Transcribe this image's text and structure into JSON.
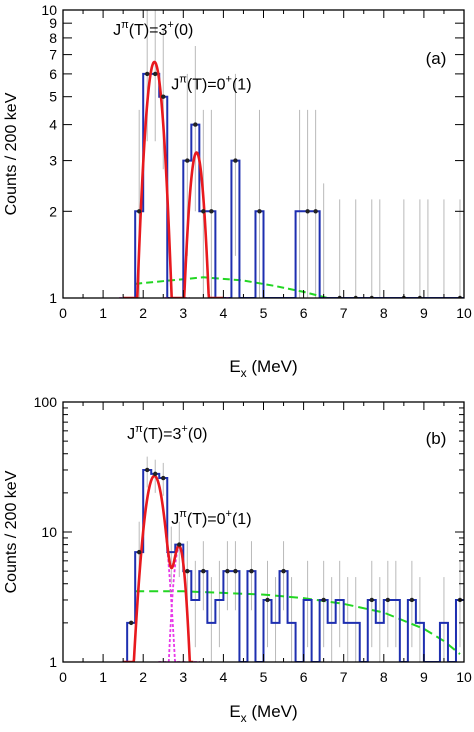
{
  "chart_data": [
    {
      "panel": "(a)",
      "type": "histogram",
      "xlabel": "E",
      "xlabel_sub": "x",
      "xlabel_unit": " (MeV)",
      "ylabel": "Counts / 200 keV",
      "xlim": [
        0,
        10
      ],
      "ylim": [
        1,
        10
      ],
      "yscale": "log",
      "x_ticks": [
        0,
        1,
        2,
        3,
        4,
        5,
        6,
        7,
        8,
        9,
        10
      ],
      "x_tick_labels": [
        "0",
        "1",
        "2",
        "3",
        "4",
        "5",
        "6",
        "7",
        "8",
        "9",
        "10"
      ],
      "y_ticks": [
        1,
        2,
        3,
        4,
        5,
        6,
        7,
        8,
        9,
        10
      ],
      "y_tick_labels": [
        "1",
        "2",
        "3",
        "4",
        "5",
        "6",
        "7",
        "8",
        "9",
        "10"
      ],
      "annotations": [
        {
          "base": "J",
          "sup1": "π",
          "mid": "(T)=3",
          "sup2": "+",
          "end": "(0)",
          "x": 1.25,
          "y": 8.2
        },
        {
          "base": "J",
          "sup1": "π",
          "mid": "(T)=0",
          "sup2": "+",
          "end": "(1)",
          "x": 2.7,
          "y": 5.3
        }
      ],
      "panel_label": "(a)",
      "bin_width": 0.2,
      "histogram": [
        {
          "x": 1.9,
          "y": 2
        },
        {
          "x": 2.1,
          "y": 6
        },
        {
          "x": 2.3,
          "y": 6
        },
        {
          "x": 2.5,
          "y": 5
        },
        {
          "x": 2.7,
          "y": 1
        },
        {
          "x": 2.9,
          "y": 1
        },
        {
          "x": 3.1,
          "y": 3
        },
        {
          "x": 3.3,
          "y": 4
        },
        {
          "x": 3.5,
          "y": 2
        },
        {
          "x": 3.7,
          "y": 2
        },
        {
          "x": 3.9,
          "y": 1
        },
        {
          "x": 4.1,
          "y": 1
        },
        {
          "x": 4.3,
          "y": 3
        },
        {
          "x": 4.5,
          "y": 1
        },
        {
          "x": 4.7,
          "y": 1
        },
        {
          "x": 4.9,
          "y": 2
        },
        {
          "x": 5.1,
          "y": 1
        },
        {
          "x": 5.3,
          "y": 1
        },
        {
          "x": 5.5,
          "y": 1
        },
        {
          "x": 5.7,
          "y": 1
        },
        {
          "x": 5.9,
          "y": 2
        },
        {
          "x": 6.1,
          "y": 2
        },
        {
          "x": 6.3,
          "y": 2
        },
        {
          "x": 6.5,
          "y": 1
        },
        {
          "x": 6.7,
          "y": 1
        },
        {
          "x": 6.9,
          "y": 1
        },
        {
          "x": 7.1,
          "y": 1
        },
        {
          "x": 7.3,
          "y": 1
        },
        {
          "x": 7.5,
          "y": 1
        },
        {
          "x": 7.7,
          "y": 1
        },
        {
          "x": 7.9,
          "y": 1
        },
        {
          "x": 8.1,
          "y": 1
        },
        {
          "x": 8.3,
          "y": 1
        },
        {
          "x": 8.5,
          "y": 1
        },
        {
          "x": 8.7,
          "y": 1
        },
        {
          "x": 8.9,
          "y": 1
        },
        {
          "x": 9.1,
          "y": 1
        },
        {
          "x": 9.3,
          "y": 1
        },
        {
          "x": 9.5,
          "y": 1
        },
        {
          "x": 9.7,
          "y": 1
        },
        {
          "x": 9.9,
          "y": 1
        }
      ],
      "error_bars": [
        {
          "x": 1.9,
          "lo": 1,
          "hi": 4.5
        },
        {
          "x": 2.1,
          "lo": 3.5,
          "hi": 10
        },
        {
          "x": 2.3,
          "lo": 3.5,
          "hi": 10
        },
        {
          "x": 2.5,
          "lo": 2.8,
          "hi": 8.5
        },
        {
          "x": 3.1,
          "lo": 1.4,
          "hi": 6
        },
        {
          "x": 3.3,
          "lo": 2,
          "hi": 7.5
        },
        {
          "x": 3.5,
          "lo": 1,
          "hi": 4.5
        },
        {
          "x": 3.7,
          "lo": 1,
          "hi": 4.5
        },
        {
          "x": 4.3,
          "lo": 1.4,
          "hi": 6
        },
        {
          "x": 4.9,
          "lo": 1,
          "hi": 4.5
        },
        {
          "x": 5.9,
          "lo": 1,
          "hi": 4.5
        },
        {
          "x": 6.1,
          "lo": 1,
          "hi": 4.5
        },
        {
          "x": 6.3,
          "lo": 1,
          "hi": 4.5
        },
        {
          "x": 6.5,
          "lo": 1,
          "hi": 2.5
        },
        {
          "x": 6.9,
          "lo": 1,
          "hi": 2.2
        },
        {
          "x": 7.3,
          "lo": 1,
          "hi": 2.2
        },
        {
          "x": 7.7,
          "lo": 1,
          "hi": 2.2
        },
        {
          "x": 7.9,
          "lo": 1,
          "hi": 2.2
        },
        {
          "x": 8.5,
          "lo": 1,
          "hi": 2.2
        },
        {
          "x": 8.9,
          "lo": 1,
          "hi": 2.2
        },
        {
          "x": 9.1,
          "lo": 1,
          "hi": 2.2
        },
        {
          "x": 9.5,
          "lo": 1,
          "hi": 2.2
        },
        {
          "x": 9.9,
          "lo": 1,
          "hi": 2.2
        }
      ],
      "markers": [
        {
          "x": 1.9,
          "y": 2
        },
        {
          "x": 2.1,
          "y": 6
        },
        {
          "x": 2.3,
          "y": 6
        },
        {
          "x": 2.5,
          "y": 5
        },
        {
          "x": 3.1,
          "y": 3
        },
        {
          "x": 3.3,
          "y": 4
        },
        {
          "x": 3.5,
          "y": 2
        },
        {
          "x": 3.7,
          "y": 2
        },
        {
          "x": 4.3,
          "y": 3
        },
        {
          "x": 4.9,
          "y": 2
        },
        {
          "x": 6.1,
          "y": 2
        },
        {
          "x": 6.3,
          "y": 2
        },
        {
          "x": 6.9,
          "y": 1
        },
        {
          "x": 7.3,
          "y": 1
        },
        {
          "x": 7.7,
          "y": 1
        },
        {
          "x": 8.5,
          "y": 1
        },
        {
          "x": 8.9,
          "y": 1
        },
        {
          "x": 9.9,
          "y": 1
        }
      ],
      "peaks": [
        {
          "center": 2.28,
          "sigma": 0.22,
          "amplitude": 6.6
        },
        {
          "center": 3.33,
          "sigma": 0.2,
          "amplitude": 3.2
        }
      ],
      "background": [
        {
          "x": 1.8,
          "y": 1.12
        },
        {
          "x": 3.5,
          "y": 1.18
        },
        {
          "x": 4.5,
          "y": 1.15
        },
        {
          "x": 5.3,
          "y": 1.1
        },
        {
          "x": 6.0,
          "y": 1.05
        },
        {
          "x": 6.6,
          "y": 1.0
        }
      ],
      "fit_range": [
        1.5,
        4.0
      ],
      "colors": {
        "histogram": "#1e2fb0",
        "fit": "#e8191e",
        "components": "#e838e8",
        "background": "#22d622",
        "errors": "#b9b9b9",
        "markers": "#222222"
      }
    },
    {
      "panel": "(b)",
      "type": "histogram",
      "xlabel": "E",
      "xlabel_sub": "x",
      "xlabel_unit": " (MeV)",
      "ylabel": "Counts / 200 keV",
      "xlim": [
        0,
        10
      ],
      "ylim": [
        1,
        100
      ],
      "yscale": "log",
      "x_ticks": [
        0,
        1,
        2,
        3,
        4,
        5,
        6,
        7,
        8,
        9,
        10
      ],
      "x_tick_labels": [
        "0",
        "1",
        "2",
        "3",
        "4",
        "5",
        "6",
        "7",
        "8",
        "9",
        "10"
      ],
      "y_ticks": [
        1,
        10,
        100
      ],
      "y_tick_labels": [
        "1",
        "10",
        "100"
      ],
      "annotations": [
        {
          "base": "J",
          "sup1": "π",
          "mid": "(T)=3",
          "sup2": "+",
          "end": "(0)",
          "x": 1.6,
          "y": 52
        },
        {
          "base": "J",
          "sup1": "π",
          "mid": "(T)=0",
          "sup2": "+",
          "end": "(1)",
          "x": 2.7,
          "y": 11.5
        }
      ],
      "panel_label": "(b)",
      "bin_width": 0.2,
      "histogram": [
        {
          "x": 1.7,
          "y": 2
        },
        {
          "x": 1.9,
          "y": 7
        },
        {
          "x": 2.1,
          "y": 30
        },
        {
          "x": 2.3,
          "y": 28
        },
        {
          "x": 2.5,
          "y": 26
        },
        {
          "x": 2.7,
          "y": 7
        },
        {
          "x": 2.9,
          "y": 8
        },
        {
          "x": 3.1,
          "y": 5
        },
        {
          "x": 3.3,
          "y": 3
        },
        {
          "x": 3.5,
          "y": 5
        },
        {
          "x": 3.7,
          "y": 2
        },
        {
          "x": 3.9,
          "y": 3
        },
        {
          "x": 4.1,
          "y": 5
        },
        {
          "x": 4.3,
          "y": 5
        },
        {
          "x": 4.5,
          "y": 1
        },
        {
          "x": 4.7,
          "y": 5
        },
        {
          "x": 4.9,
          "y": 1
        },
        {
          "x": 5.1,
          "y": 3
        },
        {
          "x": 5.3,
          "y": 2
        },
        {
          "x": 5.5,
          "y": 5
        },
        {
          "x": 5.7,
          "y": 2
        },
        {
          "x": 5.9,
          "y": 1
        },
        {
          "x": 6.1,
          "y": 3
        },
        {
          "x": 6.3,
          "y": 1
        },
        {
          "x": 6.5,
          "y": 3
        },
        {
          "x": 6.7,
          "y": 2
        },
        {
          "x": 6.9,
          "y": 3
        },
        {
          "x": 7.1,
          "y": 2
        },
        {
          "x": 7.3,
          "y": 2
        },
        {
          "x": 7.5,
          "y": 1
        },
        {
          "x": 7.7,
          "y": 3
        },
        {
          "x": 7.9,
          "y": 2
        },
        {
          "x": 8.1,
          "y": 3
        },
        {
          "x": 8.3,
          "y": 3
        },
        {
          "x": 8.5,
          "y": 1
        },
        {
          "x": 8.7,
          "y": 3
        },
        {
          "x": 8.9,
          "y": 2
        },
        {
          "x": 9.1,
          "y": 1
        },
        {
          "x": 9.3,
          "y": 1
        },
        {
          "x": 9.5,
          "y": 2
        },
        {
          "x": 9.7,
          "y": 1
        },
        {
          "x": 9.9,
          "y": 3
        }
      ],
      "error_bars": [
        {
          "x": 1.9,
          "lo": 3.5,
          "hi": 12
        },
        {
          "x": 2.1,
          "lo": 22,
          "hi": 38
        },
        {
          "x": 2.3,
          "lo": 20,
          "hi": 36
        },
        {
          "x": 2.5,
          "lo": 19,
          "hi": 34
        },
        {
          "x": 2.7,
          "lo": 4,
          "hi": 11
        },
        {
          "x": 2.9,
          "lo": 4.5,
          "hi": 12
        },
        {
          "x": 3.1,
          "lo": 2.5,
          "hi": 8.5
        },
        {
          "x": 3.3,
          "lo": 1.3,
          "hi": 6
        },
        {
          "x": 3.5,
          "lo": 2.5,
          "hi": 8.5
        },
        {
          "x": 3.7,
          "lo": 1,
          "hi": 4.5
        },
        {
          "x": 3.9,
          "lo": 1.3,
          "hi": 6
        },
        {
          "x": 4.1,
          "lo": 2.5,
          "hi": 8.5
        },
        {
          "x": 4.3,
          "lo": 2.5,
          "hi": 8.5
        },
        {
          "x": 4.7,
          "lo": 2.5,
          "hi": 8.5
        },
        {
          "x": 5.1,
          "lo": 1.3,
          "hi": 6
        },
        {
          "x": 5.3,
          "lo": 1,
          "hi": 4.5
        },
        {
          "x": 5.5,
          "lo": 2.5,
          "hi": 8.5
        },
        {
          "x": 5.7,
          "lo": 1,
          "hi": 4.5
        },
        {
          "x": 6.1,
          "lo": 1.3,
          "hi": 6
        },
        {
          "x": 6.5,
          "lo": 1.3,
          "hi": 6
        },
        {
          "x": 6.7,
          "lo": 1,
          "hi": 4.5
        },
        {
          "x": 6.9,
          "lo": 1.3,
          "hi": 6
        },
        {
          "x": 7.1,
          "lo": 1,
          "hi": 4.5
        },
        {
          "x": 7.3,
          "lo": 1,
          "hi": 4.5
        },
        {
          "x": 7.7,
          "lo": 1.3,
          "hi": 6
        },
        {
          "x": 7.9,
          "lo": 1,
          "hi": 4.5
        },
        {
          "x": 8.1,
          "lo": 1.3,
          "hi": 6
        },
        {
          "x": 8.3,
          "lo": 1.3,
          "hi": 6
        },
        {
          "x": 8.7,
          "lo": 1.3,
          "hi": 6
        },
        {
          "x": 8.9,
          "lo": 1,
          "hi": 4.5
        },
        {
          "x": 9.5,
          "lo": 1,
          "hi": 4.5
        },
        {
          "x": 9.9,
          "lo": 1.3,
          "hi": 6
        }
      ],
      "markers": [
        {
          "x": 1.7,
          "y": 2
        },
        {
          "x": 1.9,
          "y": 7
        },
        {
          "x": 2.1,
          "y": 30
        },
        {
          "x": 2.3,
          "y": 28
        },
        {
          "x": 2.5,
          "y": 26
        },
        {
          "x": 2.9,
          "y": 8
        },
        {
          "x": 3.1,
          "y": 5
        },
        {
          "x": 3.5,
          "y": 5
        },
        {
          "x": 4.1,
          "y": 5
        },
        {
          "x": 4.3,
          "y": 5
        },
        {
          "x": 4.7,
          "y": 5
        },
        {
          "x": 5.1,
          "y": 3
        },
        {
          "x": 5.5,
          "y": 5
        },
        {
          "x": 6.5,
          "y": 3
        },
        {
          "x": 7.7,
          "y": 3
        },
        {
          "x": 8.1,
          "y": 3
        },
        {
          "x": 8.7,
          "y": 3
        },
        {
          "x": 9.9,
          "y": 3
        }
      ],
      "peaks": [
        {
          "center": 2.28,
          "sigma": 0.2,
          "amplitude": 27
        },
        {
          "center": 2.9,
          "sigma": 0.13,
          "amplitude": 7.6
        }
      ],
      "background": [
        {
          "x": 1.8,
          "y": 3.5
        },
        {
          "x": 3.0,
          "y": 3.5
        },
        {
          "x": 4.0,
          "y": 3.4
        },
        {
          "x": 5.0,
          "y": 3.3
        },
        {
          "x": 6.0,
          "y": 3.1
        },
        {
          "x": 7.0,
          "y": 2.8
        },
        {
          "x": 8.0,
          "y": 2.4
        },
        {
          "x": 9.0,
          "y": 1.8
        },
        {
          "x": 9.5,
          "y": 1.45
        },
        {
          "x": 9.9,
          "y": 1.15
        }
      ],
      "fit_range": [
        1.5,
        3.25
      ],
      "colors": {
        "histogram": "#1e2fb0",
        "fit": "#e8191e",
        "components": "#e838e8",
        "background": "#22d622",
        "errors": "#b9b9b9",
        "markers": "#222222"
      }
    }
  ]
}
